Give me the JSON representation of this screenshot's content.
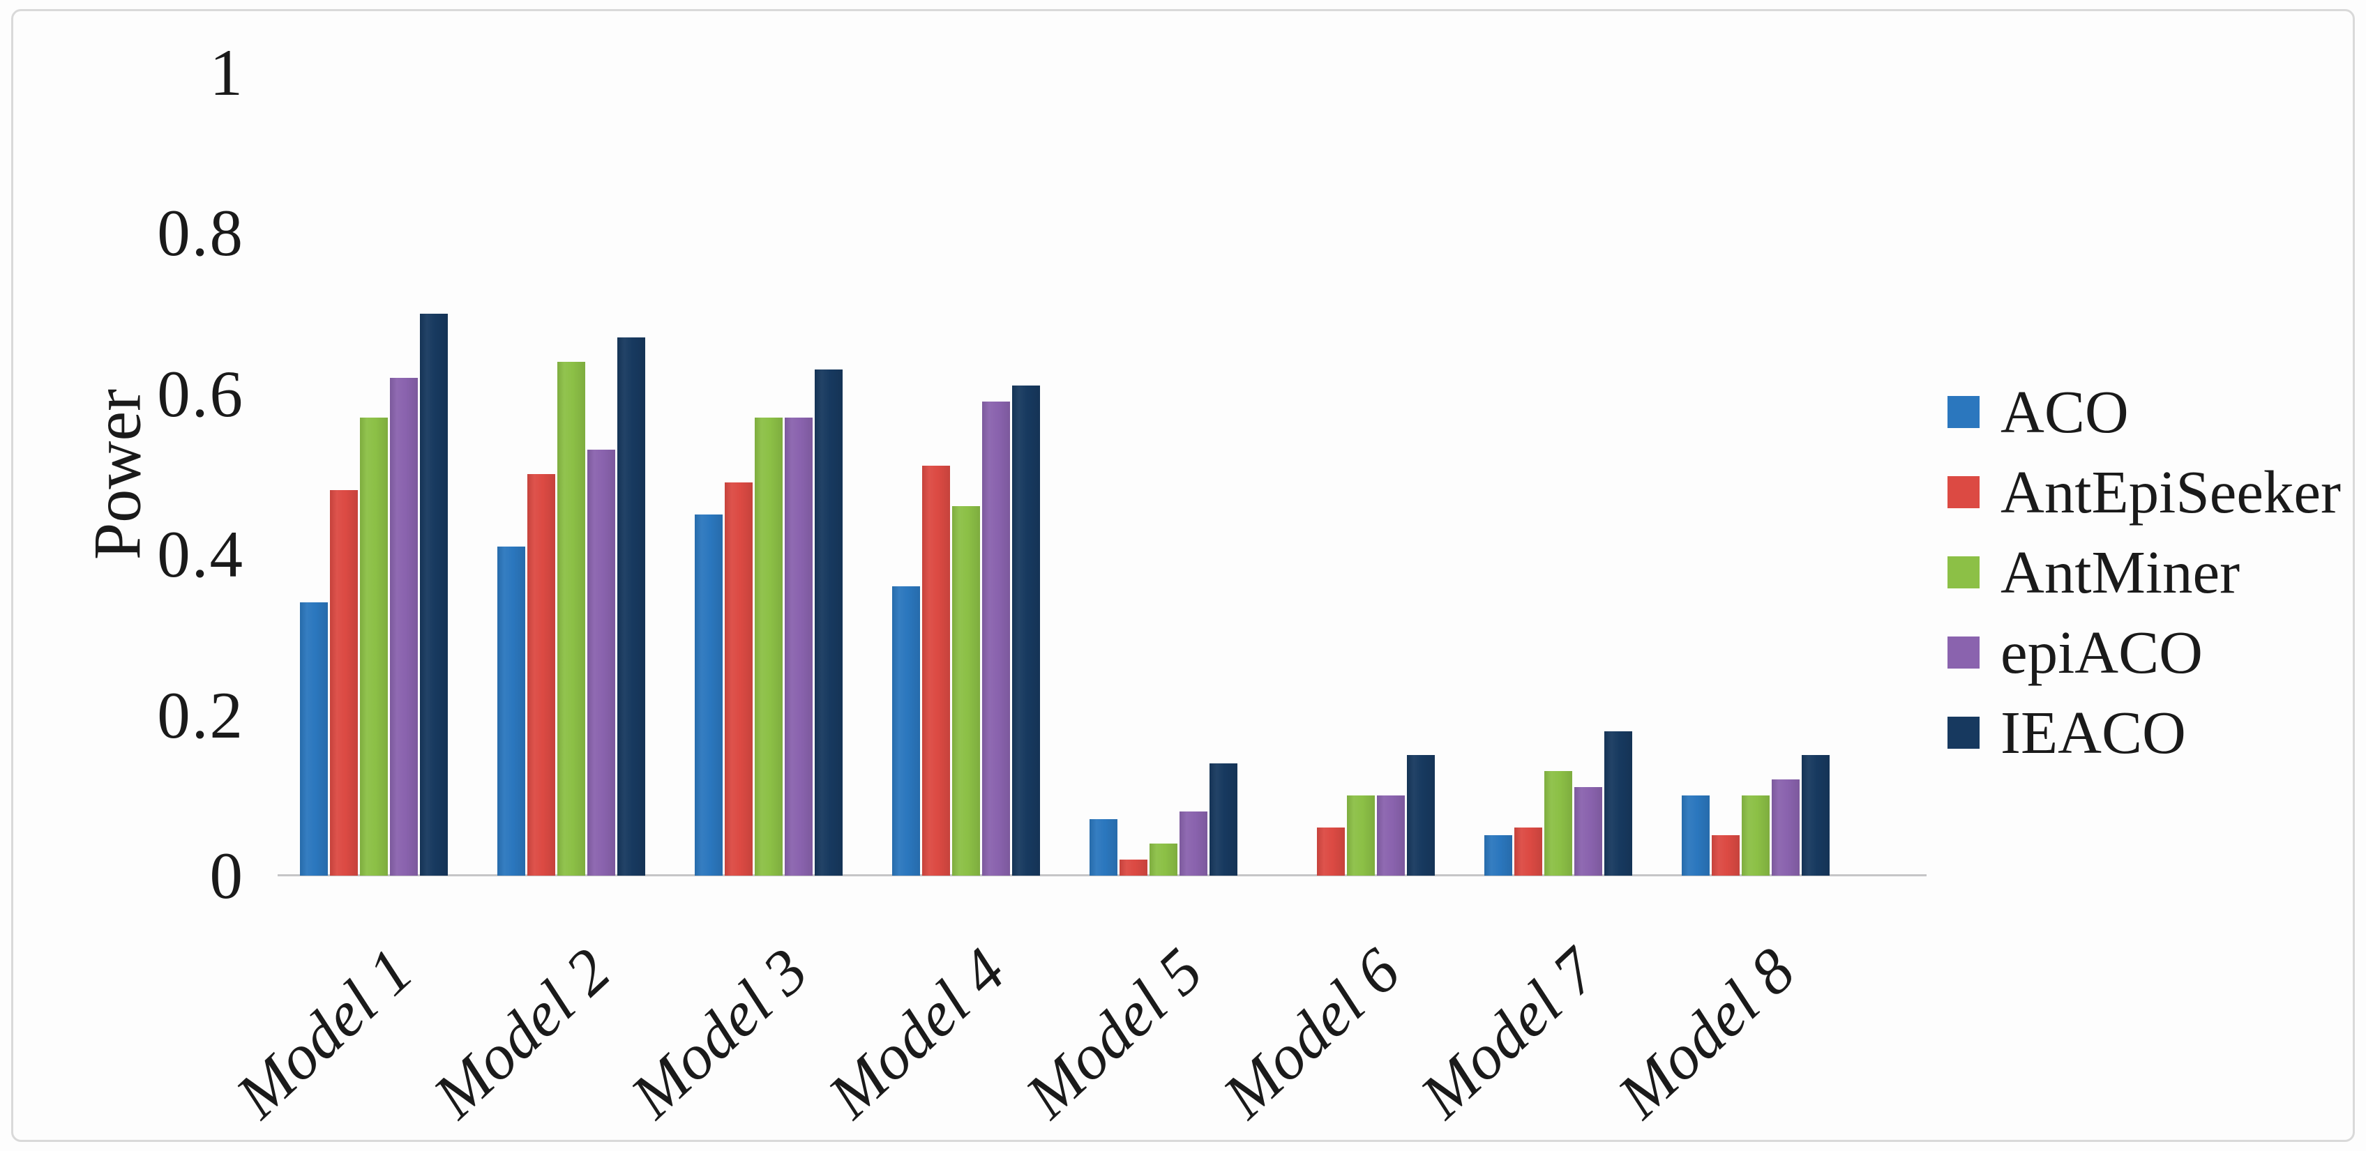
{
  "figure": {
    "background_color": "#fdfdfd",
    "border_color": "#d9d9d9",
    "axis_line_color": "#c5c5c7",
    "text_color": "#1a1a1a"
  },
  "chart_data": {
    "type": "bar",
    "title": "",
    "ylabel": "Power",
    "xlabel": "",
    "categories": [
      "Model 1",
      "Model 2",
      "Model 3",
      "Model 4",
      "Model 5",
      "Model 6",
      "Model 7",
      "Model 8"
    ],
    "series": [
      {
        "name": "ACO",
        "color": "#2B77BE",
        "values": [
          0.34,
          0.41,
          0.45,
          0.36,
          0.07,
          0.0,
          0.05,
          0.1
        ]
      },
      {
        "name": "AntEpiSeeker",
        "color": "#DC4A43",
        "values": [
          0.48,
          0.5,
          0.49,
          0.51,
          0.02,
          0.06,
          0.06,
          0.05
        ]
      },
      {
        "name": "AntMiner",
        "color": "#8CC046",
        "values": [
          0.57,
          0.64,
          0.57,
          0.46,
          0.04,
          0.1,
          0.13,
          0.1
        ]
      },
      {
        "name": "epiACO",
        "color": "#8A63AE",
        "values": [
          0.62,
          0.53,
          0.57,
          0.59,
          0.08,
          0.1,
          0.11,
          0.12
        ]
      },
      {
        "name": "IEACO",
        "color": "#17395F",
        "values": [
          0.7,
          0.67,
          0.63,
          0.61,
          0.14,
          0.15,
          0.18,
          0.15
        ]
      }
    ],
    "ylim": [
      0,
      1
    ],
    "yticks": [
      0,
      0.2,
      0.4,
      0.6,
      0.8,
      1
    ],
    "ytick_labels": [
      "0",
      "0.2",
      "0.4",
      "0.6",
      "0.8",
      "1"
    ],
    "grid": false,
    "legend_position": "right",
    "x_label_rotation_deg": -43
  }
}
